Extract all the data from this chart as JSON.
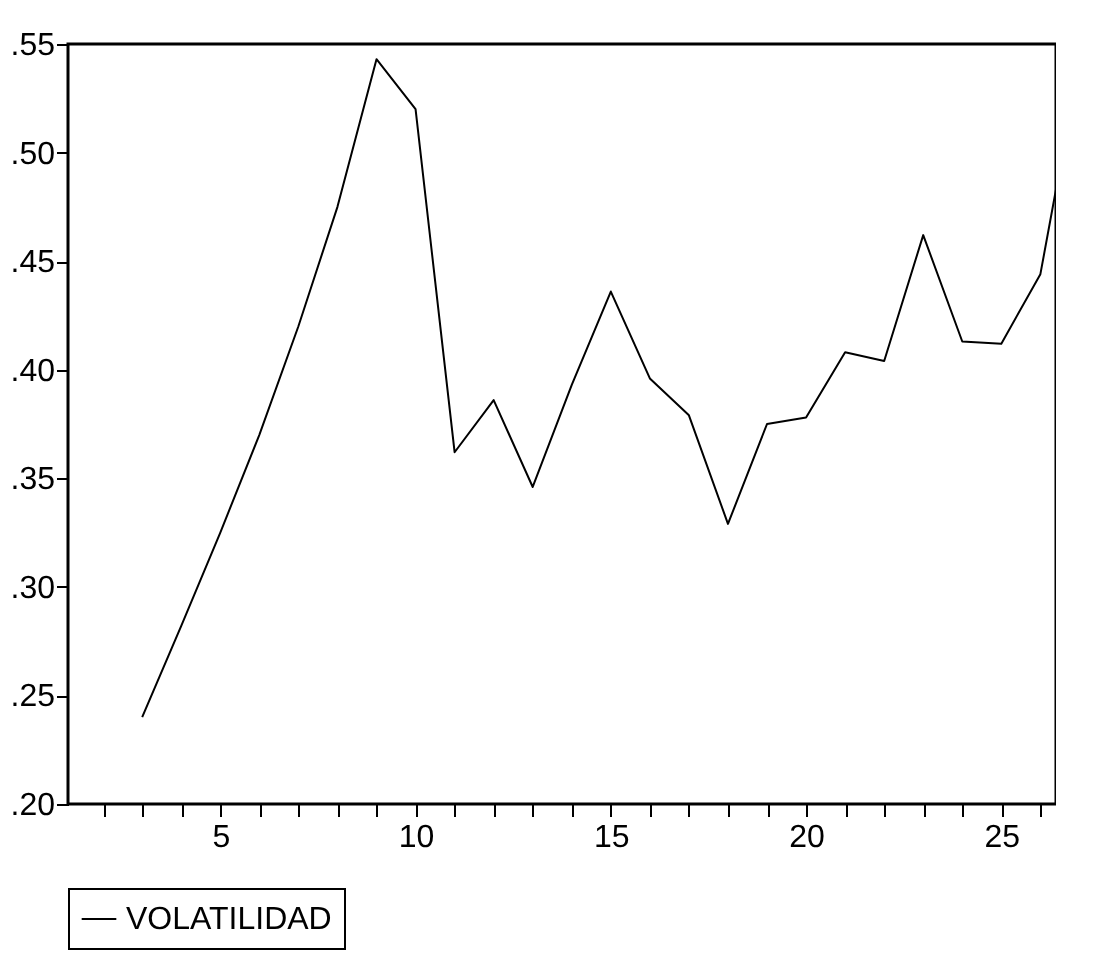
{
  "chart_data": {
    "type": "line",
    "x": [
      3,
      4,
      5,
      6,
      7,
      8,
      9,
      10,
      11,
      12,
      13,
      14,
      15,
      16,
      17,
      18,
      19,
      20,
      21,
      22,
      23,
      24,
      25,
      26,
      26.4
    ],
    "series": [
      {
        "name": "VOLATILIDAD",
        "color": "#000000",
        "values": [
          0.24,
          0.282,
          0.325,
          0.37,
          0.42,
          0.475,
          0.543,
          0.52,
          0.362,
          0.386,
          0.346,
          0.393,
          0.436,
          0.396,
          0.379,
          0.329,
          0.375,
          0.378,
          0.408,
          0.404,
          0.462,
          0.413,
          0.412,
          0.444,
          0.483
        ]
      }
    ],
    "xlim": [
      1.1,
      26.4
    ],
    "xticks": [
      {
        "value": 2,
        "label": null
      },
      {
        "value": 3,
        "label": null
      },
      {
        "value": 4,
        "label": null
      },
      5,
      {
        "value": 6,
        "label": null
      },
      {
        "value": 7,
        "label": null
      },
      {
        "value": 8,
        "label": null
      },
      {
        "value": 9,
        "label": null
      },
      10,
      {
        "value": 11,
        "label": null
      },
      {
        "value": 12,
        "label": null
      },
      {
        "value": 13,
        "label": null
      },
      {
        "value": 14,
        "label": null
      },
      15,
      {
        "value": 16,
        "label": null
      },
      {
        "value": 17,
        "label": null
      },
      {
        "value": 18,
        "label": null
      },
      {
        "value": 19,
        "label": null
      },
      20,
      {
        "value": 21,
        "label": null
      },
      {
        "value": 22,
        "label": null
      },
      {
        "value": 23,
        "label": null
      },
      {
        "value": 24,
        "label": null
      },
      25,
      {
        "value": 26,
        "label": null
      }
    ],
    "ylim": [
      0.2,
      0.55
    ],
    "yticks": [
      {
        "value": 0.2,
        "label": ".20"
      },
      {
        "value": 0.25,
        "label": ".25"
      },
      {
        "value": 0.3,
        "label": ".30"
      },
      {
        "value": 0.35,
        "label": ".35"
      },
      {
        "value": 0.4,
        "label": ".40"
      },
      {
        "value": 0.45,
        "label": ".45"
      },
      {
        "value": 0.5,
        "label": ".50"
      },
      {
        "value": 0.55,
        "label": ".55"
      }
    ],
    "grid": false,
    "legend": "bottom",
    "marker": "none",
    "line_style": "solid"
  }
}
